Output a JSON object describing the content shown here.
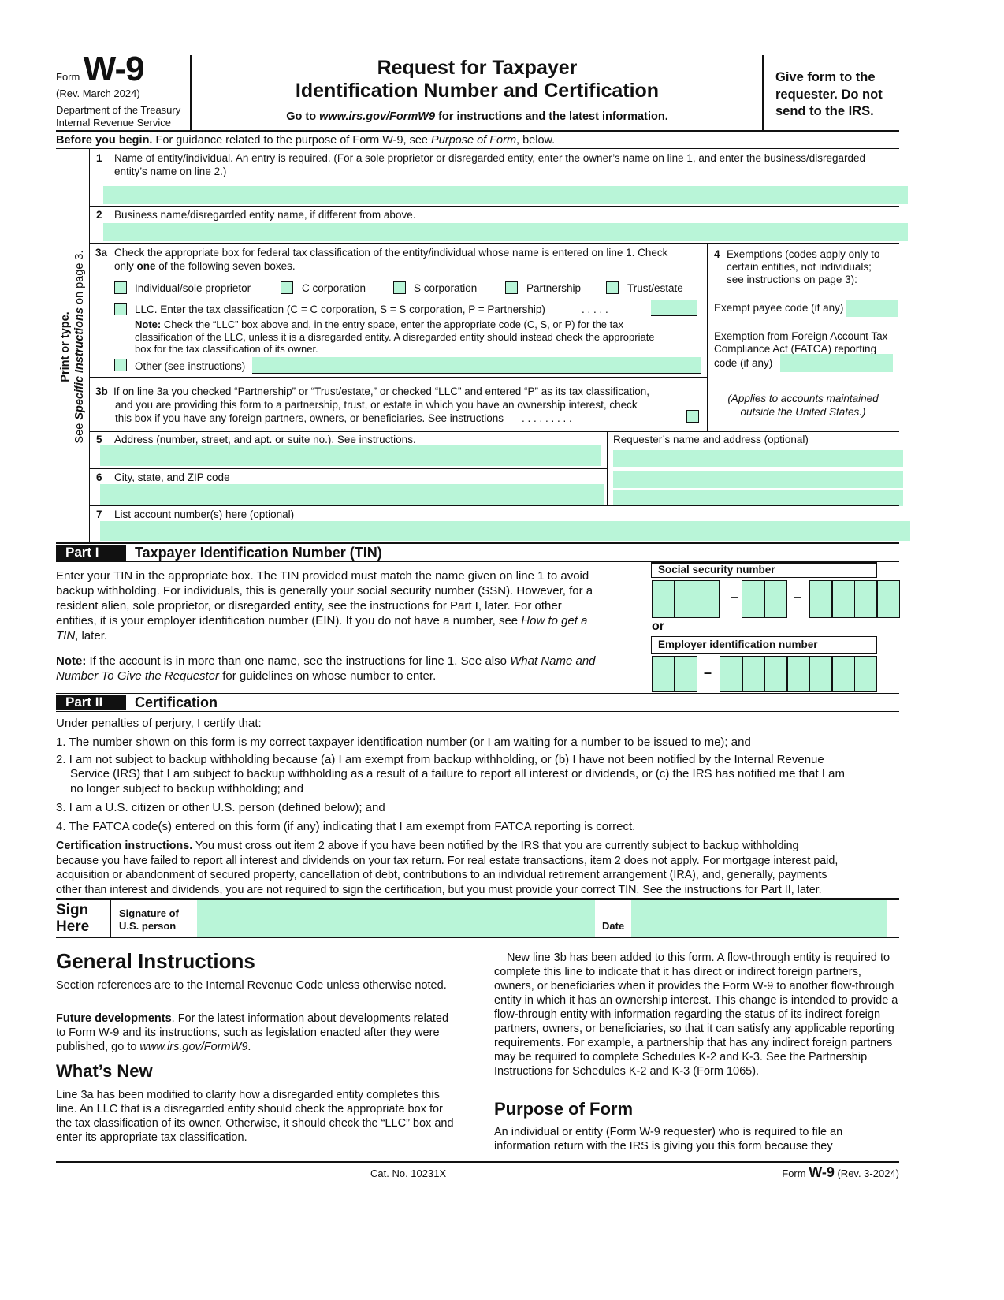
{
  "header": {
    "form_word": "Form",
    "form_name": "W-9",
    "rev": "(Rev. March 2024)",
    "dept": "Department of the Treasury",
    "irs": "Internal Revenue Service",
    "title_line1": "Request for Taxpayer",
    "title_line2": "Identification Number and Certification",
    "goto_pre": "Go to ",
    "goto_url": "www.irs.gov/FormW9",
    "goto_post": " for instructions and the latest information.",
    "give_line1": "Give form to the",
    "give_line2": "requester. Do not",
    "give_line3": "send to the IRS."
  },
  "before": {
    "bold": "Before you begin.",
    "text": " For guidance related to the purpose of Form W-9, see ",
    "italic": "Purpose of Form",
    "tail": ", below."
  },
  "sidebar": {
    "line1": "Print or type.",
    "see": "See ",
    "specific": "Specific Instructions",
    "on_page": " on page 3."
  },
  "line1": {
    "num": "1",
    "l1": "Name of entity/individual. An entry is required. (For a sole proprietor or disregarded entity, enter the owner’s name on line 1, and enter the business/disregarded",
    "l2": "entity’s name on line 2.)",
    "value": ""
  },
  "line2": {
    "num": "2",
    "label": "Business name/disregarded entity name, if different from above.",
    "value": ""
  },
  "line3a": {
    "num": "3a",
    "l1": "Check the appropriate box for federal tax classification of the entity/individual whose name is entered on line 1. Check",
    "l2_pre": "only ",
    "l2_bold": "one",
    "l2_post": " of the following seven boxes.",
    "options": [
      "Individual/sole proprietor",
      "C corporation",
      "S corporation",
      "Partnership",
      "Trust/estate"
    ],
    "llc": "LLC. Enter the tax classification (C = C corporation, S = S corporation, P = Partnership)",
    "llc_dots": ".   .   .   .   .",
    "note_bold": "Note:",
    "note1": " Check the “LLC” box above and, in the entry space, enter the appropriate code (C, S, or P) for the tax",
    "note2": "classification of the LLC, unless it is a disregarded entity. A disregarded entity should instead check the appropriate",
    "note3": "box for the tax classification of its owner.",
    "other": "Other (see instructions)"
  },
  "line3b": {
    "num": "3b",
    "l1": "If on line 3a you checked “Partnership” or “Trust/estate,” or checked “LLC” and entered “P” as its tax classification,",
    "l2": "and you are providing this form to a partnership, trust, or estate in which you have an ownership interest, check",
    "l3": "this box if you have any foreign partners, owners, or beneficiaries. See instructions",
    "dots": ".   .   .   .   .   .   .   .   ."
  },
  "line4": {
    "num": "4",
    "l1": "Exemptions (codes apply only to",
    "l2": "certain entities, not individuals;",
    "l3": "see instructions on page 3):",
    "payee": "Exempt payee code (if any)",
    "fatca1": "Exemption from Foreign Account Tax",
    "fatca2": "Compliance Act (FATCA) reporting",
    "fatca3": "code (if any)",
    "applies1": "(Applies to accounts maintained",
    "applies2": "outside the United States.)"
  },
  "line5": {
    "num": "5",
    "label": "Address (number, street, and apt. or suite no.). See instructions."
  },
  "requester": {
    "label": "Requester’s name and address (optional)"
  },
  "line6": {
    "num": "6",
    "label": "City, state, and ZIP code"
  },
  "line7": {
    "num": "7",
    "label": "List account number(s) here (optional)"
  },
  "part1": {
    "label": "Part I",
    "title": "Taxpayer Identification Number (TIN)",
    "p1": [
      "Enter your TIN in the appropriate box. The TIN provided must match the name given on line 1 to avoid",
      "backup withholding. For individuals, this is generally your social security number (SSN). However, for a",
      "resident alien, sole proprietor, or disregarded entity, see the instructions for Part I, later. For other",
      "entities, it is your employer identification number (EIN). If you do not have a number, see "
    ],
    "p1_italic": "How to get a",
    "p1_last_italic": "TIN",
    "p1_last": ", later.",
    "note_bold": "Note:",
    "note1": " If the account is in more than one name, see the instructions for line 1. See also ",
    "note1_italic": "What Name and",
    "note2_italic": "Number To Give the Requester",
    "note2": " for guidelines on whose number to enter.",
    "ssn_label": "Social security number",
    "or": "or",
    "ein_label": "Employer identification number",
    "dash": "–"
  },
  "part2": {
    "label": "Part II",
    "title": "Certification",
    "intro": "Under penalties of perjury, I certify that:",
    "items": [
      "1. The number shown on this form is my correct taxpayer identification number (or I am waiting for a number to be issued to me); and",
      "2. I am not subject to backup withholding because (a) I am exempt from backup withholding, or (b) I have not been notified by the Internal Revenue",
      "Service (IRS) that I am subject to backup withholding as a result of a failure to report all interest or dividends, or (c) the IRS has notified me that I am",
      "no longer subject to backup withholding; and",
      "3. I am a U.S. citizen or other U.S. person (defined below); and",
      "4. The FATCA code(s) entered on this form (if any) indicating that I am exempt from FATCA reporting is correct."
    ],
    "ci_bold": "Certification instructions.",
    "ci": [
      " You must cross out item 2 above if you have been notified by the IRS that you are currently subject to backup withholding",
      "because you have failed to report all interest and dividends on your tax return. For real estate transactions, item 2 does not apply. For mortgage interest paid,",
      "acquisition or abandonment of secured property, cancellation of debt, contributions to an individual retirement arrangement (IRA), and, generally, payments",
      "other than interest and dividends, you are not required to sign the certification, but you must provide your correct TIN. See the instructions for Part II, later."
    ]
  },
  "sign": {
    "sign": "Sign",
    "here": "Here",
    "sig1": "Signature of",
    "sig2": "U.S. person",
    "date": "Date"
  },
  "general": {
    "title": "General Instructions",
    "p1": "Section references are to the Internal Revenue Code unless otherwise noted.",
    "fd_bold": "Future developments",
    "fd": ". For the latest information about developments related to Form W-9 and its instructions, such as legislation enacted after they were published, go to ",
    "fd_url": "www.irs.gov/FormW9",
    "fd_end": ".",
    "whats_new": "What’s New",
    "wn": "Line 3a has been modified to clarify how a disregarded entity completes this line. An LLC that is a disregarded entity should check the appropriate box for the tax classification of its owner. Otherwise, it should check the “LLC” box and enter its appropriate tax classification.",
    "right_p1": "New line 3b has been added to this form. A flow-through entity is required to complete this line to indicate that it has direct or indirect foreign partners, owners, or beneficiaries when it provides the Form W-9 to another flow-through entity in which it has an ownership interest. This change is intended to provide a flow-through entity with information regarding the status of its indirect foreign partners, owners, or beneficiaries, so that it can satisfy any applicable reporting requirements. For example, a partnership that has any indirect foreign partners may be required to complete Schedules K-2 and K-3. See the Partnership Instructions for Schedules K-2 and K-3 (Form 1065).",
    "purpose": "Purpose of Form",
    "purpose_p": "An individual or entity (Form W-9 requester) who is required to file an information return with the IRS is giving you this form because they"
  },
  "footer": {
    "cat": "Cat. No. 10231X",
    "form": "Form ",
    "name": "W-9",
    "rev": " (Rev. 3-2024)"
  },
  "colors": {
    "field_fill": "#b9f5d8",
    "ink": "#111111"
  }
}
